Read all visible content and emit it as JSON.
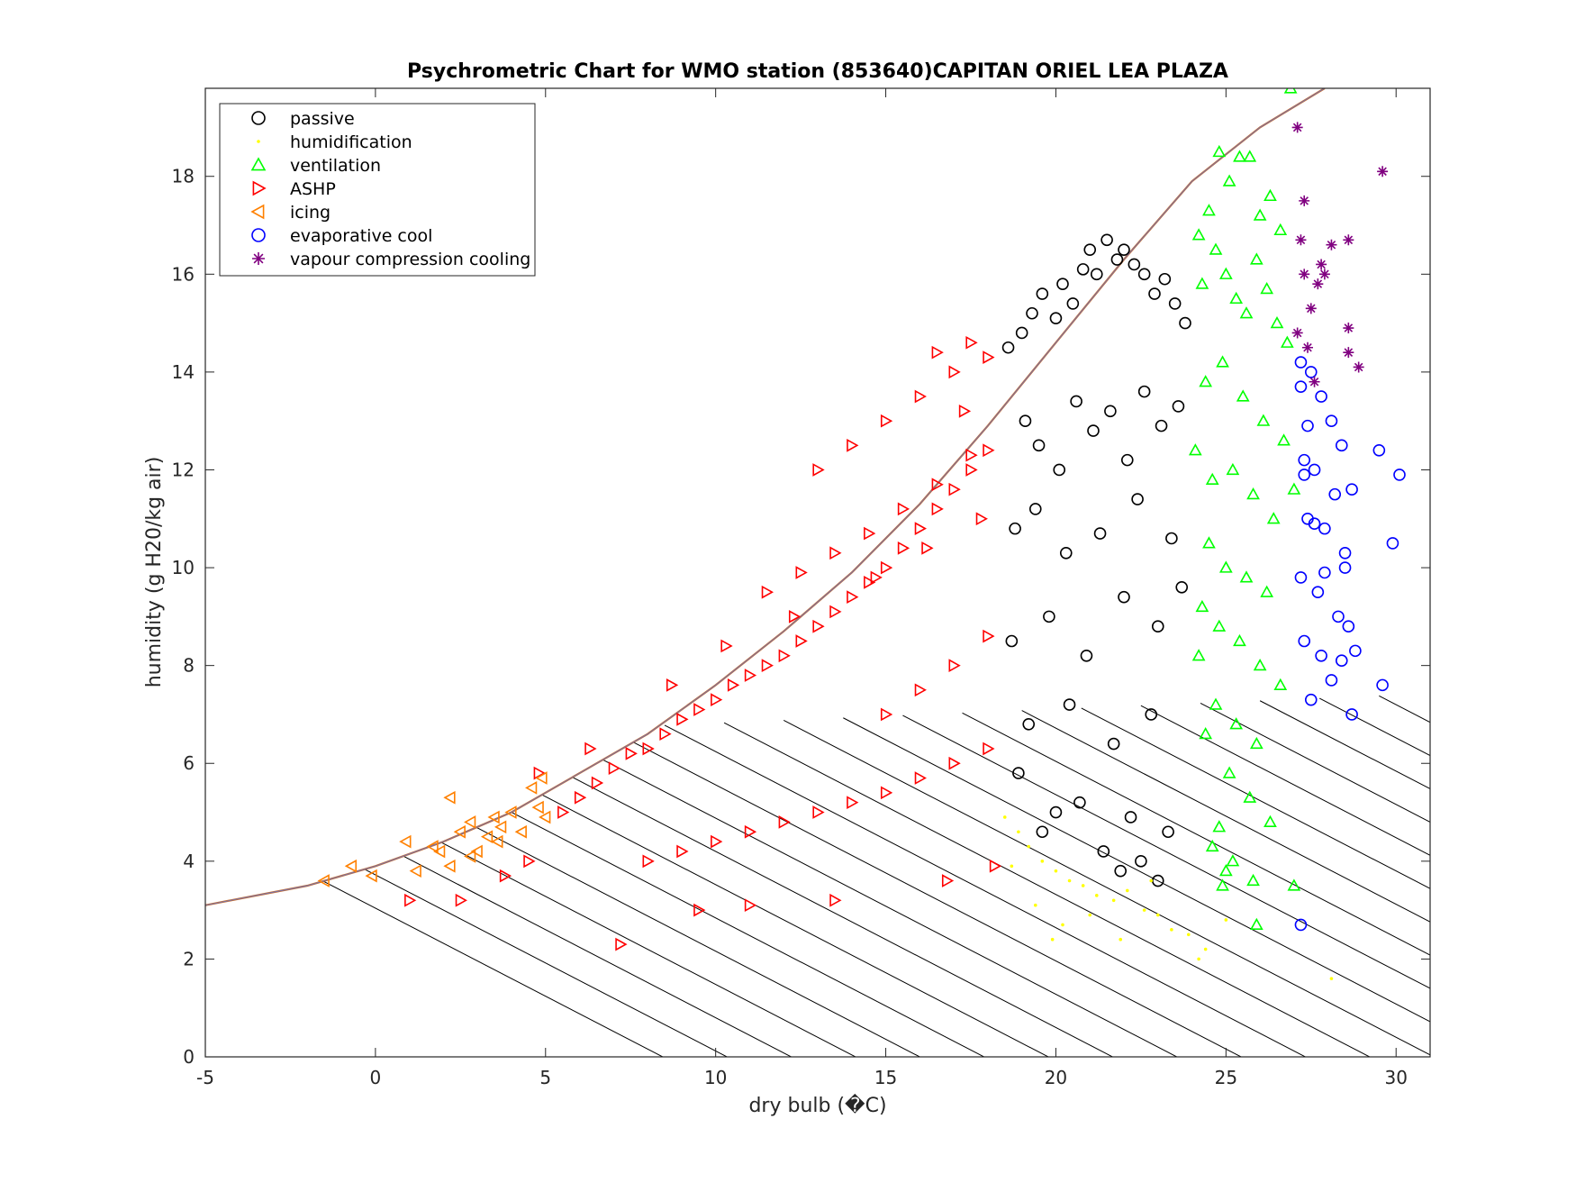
{
  "chart_data": {
    "type": "scatter",
    "title": "Psychrometric Chart for WMO station (853640)CAPITAN ORIEL LEA PLAZA",
    "xlabel": "dry bulb (�C)",
    "ylabel": "humidity (g H20/kg air)",
    "xlim": [
      -5,
      31
    ],
    "ylim": [
      0,
      19.8
    ],
    "xticks": [
      "-5",
      "0",
      "5",
      "10",
      "15",
      "20",
      "25",
      "30"
    ],
    "yticks": [
      "0",
      "2",
      "4",
      "6",
      "8",
      "10",
      "12",
      "14",
      "16",
      "18"
    ],
    "grid": false,
    "legend_position": "top-left",
    "saturation_curve": {
      "x": [
        -5,
        -2,
        0,
        2,
        4,
        6,
        8,
        10,
        12,
        14,
        16,
        18,
        20,
        22,
        24,
        26,
        27.9
      ],
      "y": [
        3.1,
        3.5,
        3.9,
        4.4,
        5.0,
        5.8,
        6.6,
        7.6,
        8.7,
        9.9,
        11.3,
        12.9,
        14.6,
        16.3,
        17.9,
        19.0,
        19.8
      ]
    },
    "wet_bulb_lines_note": "parallel diagonal lines below saturation curve",
    "series": [
      {
        "name": "passive",
        "marker": "circle-open",
        "color": "#000000",
        "x": [
          18.6,
          19.0,
          19.3,
          19.6,
          20.0,
          20.2,
          20.5,
          20.8,
          21.0,
          21.2,
          21.5,
          21.8,
          22.0,
          22.3,
          22.6,
          22.9,
          23.2,
          23.5,
          23.8,
          19.1,
          19.5,
          20.1,
          20.6,
          21.1,
          21.6,
          22.1,
          22.6,
          23.1,
          23.6,
          18.8,
          19.4,
          20.3,
          21.3,
          22.4,
          23.4,
          18.7,
          19.8,
          20.9,
          22.0,
          23.0,
          23.7,
          19.2,
          20.4,
          21.7,
          22.8,
          18.9,
          20.7,
          22.2,
          23.3,
          21.4,
          22.5,
          21.9,
          23.0,
          20.0,
          19.6
        ],
        "y": [
          14.5,
          14.8,
          15.2,
          15.6,
          15.1,
          15.8,
          15.4,
          16.1,
          16.5,
          16.0,
          16.7,
          16.3,
          16.5,
          16.2,
          16.0,
          15.6,
          15.9,
          15.4,
          15.0,
          13.0,
          12.5,
          12.0,
          13.4,
          12.8,
          13.2,
          12.2,
          13.6,
          12.9,
          13.3,
          10.8,
          11.2,
          10.3,
          10.7,
          11.4,
          10.6,
          8.5,
          9.0,
          8.2,
          9.4,
          8.8,
          9.6,
          6.8,
          7.2,
          6.4,
          7.0,
          5.8,
          5.2,
          4.9,
          4.6,
          4.2,
          4.0,
          3.8,
          3.6,
          5.0,
          4.6
        ]
      },
      {
        "name": "humidification",
        "marker": "point",
        "color": "#ffff00",
        "x": [
          18.5,
          18.9,
          19.2,
          19.6,
          20.0,
          20.4,
          20.8,
          21.2,
          21.7,
          22.1,
          22.6,
          23.0,
          23.4,
          23.9,
          24.4,
          25.0,
          19.4,
          20.2,
          21.0,
          21.9,
          22.8,
          24.2,
          28.1,
          18.7,
          19.9
        ],
        "y": [
          4.9,
          4.6,
          4.3,
          4.0,
          3.8,
          3.6,
          3.5,
          3.3,
          3.2,
          3.4,
          3.0,
          2.9,
          2.6,
          2.5,
          2.2,
          2.8,
          3.1,
          2.7,
          2.9,
          2.4,
          3.6,
          2.0,
          1.6,
          3.9,
          2.4
        ]
      },
      {
        "name": "ventilation",
        "marker": "triangle-up-open",
        "color": "#00ff00",
        "x": [
          24.2,
          24.5,
          24.8,
          25.1,
          25.4,
          25.7,
          26.0,
          26.3,
          26.6,
          26.9,
          24.3,
          24.7,
          25.0,
          25.3,
          25.6,
          25.9,
          26.2,
          26.5,
          26.8,
          24.4,
          24.9,
          25.5,
          26.1,
          26.7,
          24.1,
          24.6,
          25.2,
          25.8,
          26.4,
          27.0,
          24.5,
          25.0,
          25.6,
          26.2,
          24.3,
          24.8,
          25.4,
          26.0,
          26.6,
          24.2,
          24.7,
          25.3,
          25.9,
          24.4,
          25.1,
          25.7,
          26.3,
          24.6,
          25.2,
          25.8,
          27.0,
          25.0,
          25.9,
          24.9,
          24.8
        ],
        "y": [
          16.8,
          17.3,
          18.5,
          17.9,
          18.4,
          18.4,
          17.2,
          17.6,
          16.9,
          19.8,
          15.8,
          16.5,
          16.0,
          15.5,
          15.2,
          16.3,
          15.7,
          15.0,
          14.6,
          13.8,
          14.2,
          13.5,
          13.0,
          12.6,
          12.4,
          11.8,
          12.0,
          11.5,
          11.0,
          11.6,
          10.5,
          10.0,
          9.8,
          9.5,
          9.2,
          8.8,
          8.5,
          8.0,
          7.6,
          8.2,
          7.2,
          6.8,
          6.4,
          6.6,
          5.8,
          5.3,
          4.8,
          4.3,
          4.0,
          3.6,
          3.5,
          3.8,
          2.7,
          3.5,
          4.7
        ]
      },
      {
        "name": "ASHP",
        "marker": "triangle-right-open",
        "color": "#ff0000",
        "x": [
          5.5,
          6.0,
          6.5,
          7.0,
          7.5,
          8.0,
          8.5,
          9.0,
          9.5,
          10.0,
          10.5,
          11.0,
          11.5,
          12.0,
          12.5,
          13.0,
          13.5,
          14.0,
          14.5,
          15.0,
          15.5,
          16.0,
          16.5,
          17.0,
          17.5,
          18.0,
          8.0,
          9.0,
          10.0,
          11.0,
          12.0,
          13.0,
          14.0,
          15.0,
          16.0,
          17.0,
          18.0,
          11.5,
          12.5,
          13.5,
          14.5,
          15.5,
          16.5,
          17.5,
          13.0,
          14.0,
          15.0,
          16.0,
          17.0,
          18.0,
          15.0,
          16.0,
          17.0,
          18.0,
          16.5,
          17.5,
          3.8,
          4.5,
          1.0,
          2.5,
          7.2,
          9.5,
          11.0,
          13.5,
          16.8,
          18.2,
          4.8,
          6.3,
          8.7,
          10.3,
          12.3,
          14.7,
          16.2,
          17.8,
          17.3
        ],
        "y": [
          5.0,
          5.3,
          5.6,
          5.9,
          6.2,
          6.3,
          6.6,
          6.9,
          7.1,
          7.3,
          7.6,
          7.8,
          8.0,
          8.2,
          8.5,
          8.8,
          9.1,
          9.4,
          9.7,
          10.0,
          10.4,
          10.8,
          11.2,
          11.6,
          12.0,
          12.4,
          4.0,
          4.2,
          4.4,
          4.6,
          4.8,
          5.0,
          5.2,
          5.4,
          5.7,
          6.0,
          6.3,
          9.5,
          9.9,
          10.3,
          10.7,
          11.2,
          11.7,
          12.3,
          12.0,
          12.5,
          13.0,
          13.5,
          14.0,
          14.3,
          7.0,
          7.5,
          8.0,
          8.6,
          14.4,
          14.6,
          3.7,
          4.0,
          3.2,
          3.2,
          2.3,
          3.0,
          3.1,
          3.2,
          3.6,
          3.9,
          5.8,
          6.3,
          7.6,
          8.4,
          9.0,
          9.8,
          10.4,
          11.0,
          13.2
        ]
      },
      {
        "name": "icing",
        "marker": "triangle-left-open",
        "color": "#ff8000",
        "x": [
          -1.5,
          -0.7,
          -0.1,
          0.9,
          1.2,
          1.7,
          1.9,
          2.2,
          2.5,
          2.8,
          3.0,
          3.3,
          3.5,
          3.7,
          4.0,
          4.3,
          4.6,
          4.8,
          5.0,
          2.2,
          2.8,
          3.6,
          4.9
        ],
        "y": [
          3.6,
          3.9,
          3.7,
          4.4,
          3.8,
          4.3,
          4.2,
          5.3,
          4.6,
          4.8,
          4.2,
          4.5,
          4.9,
          4.7,
          5.0,
          4.6,
          5.5,
          5.1,
          4.9,
          3.9,
          4.1,
          4.4,
          5.7
        ]
      },
      {
        "name": "evaporative cool",
        "marker": "circle-open",
        "color": "#0000ff",
        "x": [
          27.2,
          27.5,
          27.8,
          28.1,
          28.4,
          27.3,
          27.6,
          28.2,
          28.7,
          29.5,
          30.1,
          27.4,
          27.9,
          28.5,
          29.9,
          27.2,
          27.7,
          28.3,
          28.6,
          27.3,
          27.8,
          28.8,
          29.6,
          27.5,
          28.1,
          28.7,
          27.4,
          27.2,
          27.3,
          28.5,
          27.6,
          27.9,
          28.4,
          27.2
        ],
        "y": [
          14.2,
          14.0,
          13.5,
          13.0,
          12.5,
          12.2,
          12.0,
          11.5,
          11.6,
          12.4,
          11.9,
          11.0,
          10.8,
          10.3,
          10.5,
          9.8,
          9.5,
          9.0,
          8.8,
          8.5,
          8.2,
          8.3,
          7.6,
          7.3,
          7.7,
          7.0,
          12.9,
          13.7,
          11.9,
          10.0,
          10.9,
          9.9,
          8.1,
          2.7
        ]
      },
      {
        "name": "vapour compression cooling",
        "marker": "asterisk",
        "color": "#800080",
        "x": [
          27.1,
          27.3,
          27.2,
          27.8,
          28.1,
          28.6,
          29.6,
          27.9,
          27.7,
          27.5,
          27.1,
          27.4,
          28.6,
          28.9,
          28.6,
          27.3,
          27.6
        ],
        "y": [
          19.0,
          17.5,
          16.7,
          16.2,
          16.6,
          16.7,
          18.1,
          16.0,
          15.8,
          15.3,
          14.8,
          14.5,
          14.9,
          14.1,
          14.4,
          16.0,
          13.8
        ]
      }
    ]
  }
}
